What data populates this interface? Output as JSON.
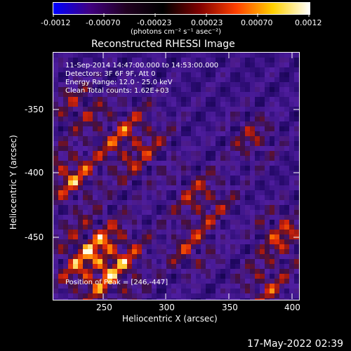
{
  "colorbar": {
    "ticks": [
      "-0.0012",
      "-0.00070",
      "-0.00023",
      "0.00023",
      "0.00070",
      "0.0012"
    ],
    "unit_label": "(photons cm⁻² s⁻¹ asec⁻²)",
    "colors": [
      "#0000ff",
      "#400080",
      "#200020",
      "#000000",
      "#800000",
      "#ff4000",
      "#ffd000",
      "#ffffff"
    ]
  },
  "plot": {
    "title": "Reconstructed RHESSI Image",
    "xlabel": "Heliocentric X (arcsec)",
    "ylabel": "Heliocentric Y (arcsec)",
    "x_ticks": [
      "250",
      "300",
      "350",
      "400"
    ],
    "y_ticks": [
      "-350",
      "-400",
      "-450"
    ]
  },
  "overlay": {
    "line1": "11-Sep-2014 14:47:00.000 to 14:53:00.000",
    "line2": "Detectors: 3F 6F 9F, Att 0",
    "line3": "Energy Range: 12.0 - 25.0 keV",
    "line4": "Clean     Total counts: 1.62E+03",
    "peak": "Position of Peak = [246,-447]"
  },
  "footer": {
    "timestamp": "17-May-2022 02:39"
  }
}
